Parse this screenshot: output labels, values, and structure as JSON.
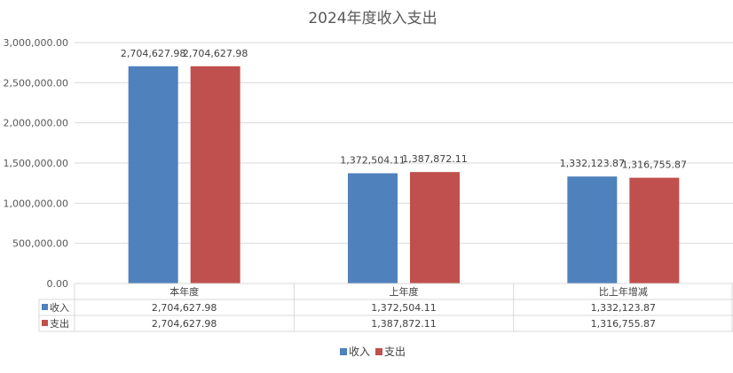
{
  "chart_data": {
    "type": "bar",
    "title": "2024年度收入支出",
    "categories": [
      "本年度",
      "上年度",
      "比上年增减"
    ],
    "series": [
      {
        "name": "收入",
        "values": [
          2704627.98,
          1372504.11,
          1332123.87
        ],
        "labels": [
          "2,704,627.98",
          "1,372,504.11",
          "1,332,123.87"
        ],
        "color": "#4F81BD"
      },
      {
        "name": "支出",
        "values": [
          2704627.98,
          1387872.11,
          1316755.87
        ],
        "labels": [
          "2,704,627.98",
          "1,387,872.11",
          "1,316,755.87"
        ],
        "color": "#C0504D"
      }
    ],
    "ylim": [
      0,
      3000000
    ],
    "yticks": [
      0,
      500000,
      1000000,
      1500000,
      2000000,
      2500000,
      3000000
    ],
    "ytick_labels": [
      "0.00",
      "500,000.00",
      "1,000,000.00",
      "1,500,000.00",
      "2,000,000.00",
      "2,500,000.00",
      "3,000,000.00"
    ],
    "grid": true,
    "legend": "bottom",
    "data_table": true
  }
}
